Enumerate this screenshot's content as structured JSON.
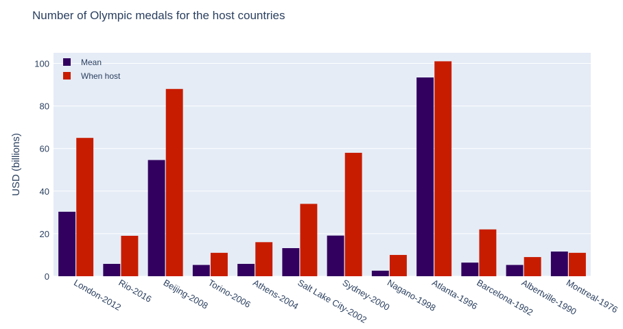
{
  "chart_data": {
    "type": "bar",
    "title": "Number of Olympic medals for the host countries",
    "xlabel": "",
    "ylabel": "USD (billions)",
    "ylim": [
      0,
      105
    ],
    "yticks": [
      0,
      20,
      40,
      60,
      80,
      100
    ],
    "categories": [
      "London-2012",
      "Rio-2016",
      "Beijing-2008",
      "Torino-2006",
      "Athens-2004",
      "Salt Lake City-2002",
      "Sydney-2000",
      "Nagano-1998",
      "Atlanta-1996",
      "Barcelona-1992",
      "Albertville-1990",
      "Montreal-1976"
    ],
    "series": [
      {
        "name": "Mean",
        "color": "#32005f",
        "values": [
          30.3,
          5.8,
          54.6,
          5.3,
          5.8,
          13.2,
          19.1,
          2.6,
          93.4,
          6.4,
          5.3,
          11.6
        ]
      },
      {
        "name": "When host",
        "color": "#c81c00",
        "values": [
          65,
          19,
          88,
          11,
          16,
          34,
          58,
          10,
          101,
          22,
          9,
          11
        ]
      }
    ],
    "grid": true,
    "legend_position": "top-left",
    "plot_background": "#e5ecf6",
    "grid_color": "#ffffff",
    "text_color": "#2a3f5f"
  }
}
